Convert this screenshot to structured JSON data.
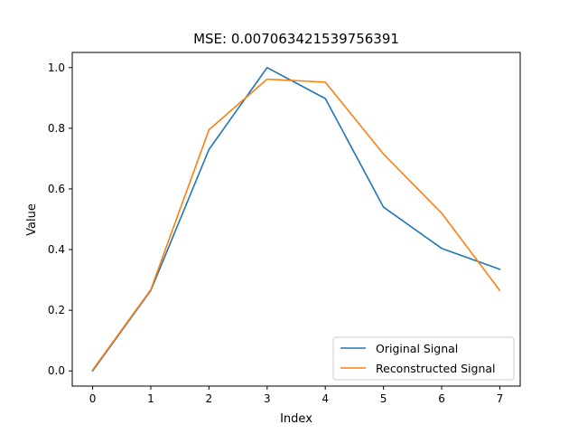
{
  "chart_data": {
    "type": "line",
    "title": "MSE: 0.007063421539756391",
    "xlabel": "Index",
    "ylabel": "Value",
    "x": [
      0,
      1,
      2,
      3,
      4,
      5,
      6,
      7
    ],
    "xticks": [
      "0",
      "1",
      "2",
      "3",
      "4",
      "5",
      "6",
      "7"
    ],
    "yticks": [
      "0.0",
      "0.2",
      "0.4",
      "0.6",
      "0.8",
      "1.0"
    ],
    "xlim": [
      -0.35,
      7.35
    ],
    "ylim": [
      -0.05,
      1.05
    ],
    "grid": false,
    "legend_position": "lower-right",
    "series": [
      {
        "name": "Original Signal",
        "color": "#1f77b4",
        "values": [
          0.0,
          0.265,
          0.73,
          1.0,
          0.898,
          0.54,
          0.404,
          0.335
        ]
      },
      {
        "name": "Reconstructed Signal",
        "color": "#ff7f0e",
        "values": [
          0.003,
          0.268,
          0.795,
          0.962,
          0.952,
          0.715,
          0.52,
          0.265
        ]
      }
    ]
  }
}
